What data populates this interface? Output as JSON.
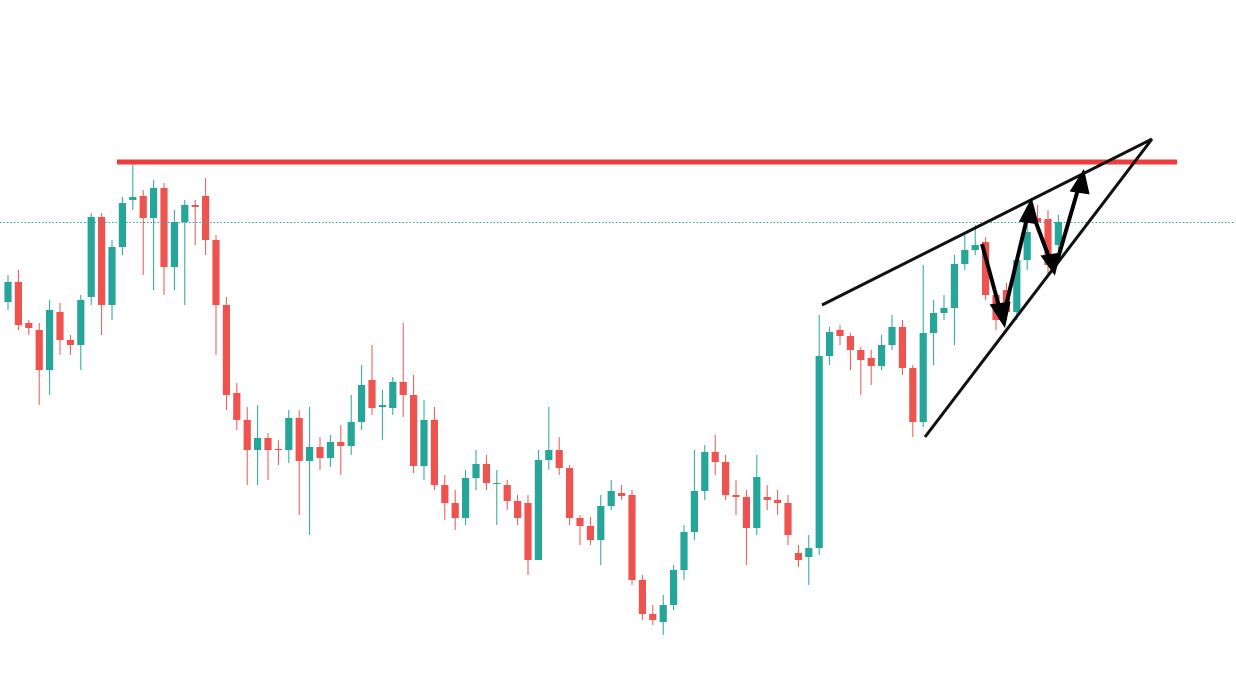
{
  "chart_data": {
    "type": "candlestick",
    "up_color": "#26a69a",
    "down_color": "#ef5350",
    "ylim": [
      0,
      695
    ],
    "open": [
      393,
      413,
      372,
      365,
      325,
      383,
      355,
      350,
      398,
      478,
      390,
      448,
      495,
      499,
      477,
      507,
      428,
      473,
      490,
      499,
      455,
      390,
      302,
      275,
      245,
      257,
      246,
      245,
      277,
      234,
      248,
      237,
      253,
      249,
      273,
      315,
      288,
      287,
      313,
      300,
      229,
      275,
      210,
      192,
      177,
      217,
      231,
      211,
      210,
      194,
      192,
      135,
      235,
      245,
      227,
      177,
      169,
      155,
      189,
      202,
      200,
      115,
      81,
      73,
      90,
      125,
      163,
      204,
      243,
      233,
      200,
      198,
      167,
      198,
      195,
      192,
      142,
      138,
      147,
      339,
      365,
      359,
      345,
      337,
      329,
      350,
      368,
      327,
      273,
      362,
      382,
      387,
      431,
      445,
      453,
      400,
      405,
      383,
      435,
      477,
      476,
      450
    ],
    "close": [
      413,
      370,
      367,
      325,
      385,
      355,
      350,
      395,
      478,
      390,
      448,
      492,
      498,
      477,
      507,
      428,
      473,
      490,
      488,
      455,
      390,
      300,
      275,
      245,
      257,
      245,
      245,
      277,
      234,
      248,
      237,
      253,
      249,
      273,
      310,
      287,
      290,
      313,
      300,
      229,
      275,
      210,
      192,
      177,
      217,
      231,
      212,
      212,
      194,
      177,
      135,
      235,
      245,
      227,
      177,
      169,
      155,
      189,
      204,
      199,
      115,
      81,
      75,
      90,
      125,
      163,
      204,
      243,
      233,
      200,
      198,
      167,
      218,
      195,
      192,
      160,
      135,
      147,
      339,
      363,
      359,
      345,
      335,
      329,
      350,
      368,
      327,
      273,
      362,
      382,
      387,
      431,
      445,
      450,
      400,
      375,
      383,
      435,
      463,
      473,
      430,
      473
    ],
    "high": [
      420,
      425,
      375,
      372,
      395,
      392,
      360,
      400,
      482,
      482,
      455,
      498,
      532,
      505,
      515,
      512,
      485,
      495,
      495,
      517,
      460,
      398,
      312,
      288,
      290,
      262,
      255,
      285,
      285,
      288,
      258,
      260,
      270,
      300,
      330,
      350,
      305,
      318,
      372,
      320,
      295,
      288,
      220,
      205,
      225,
      245,
      240,
      225,
      215,
      200,
      200,
      245,
      288,
      258,
      230,
      180,
      178,
      200,
      215,
      210,
      205,
      120,
      90,
      100,
      130,
      170,
      245,
      250,
      260,
      240,
      215,
      205,
      240,
      210,
      205,
      200,
      150,
      160,
      380,
      368,
      370,
      362,
      348,
      345,
      360,
      380,
      375,
      330,
      430,
      395,
      400,
      440,
      460,
      470,
      458,
      405,
      412,
      440,
      475,
      490,
      485,
      480
    ],
    "low": [
      385,
      365,
      360,
      290,
      300,
      340,
      340,
      325,
      390,
      360,
      375,
      440,
      485,
      420,
      405,
      400,
      405,
      390,
      450,
      440,
      340,
      285,
      265,
      210,
      210,
      215,
      230,
      232,
      180,
      160,
      225,
      228,
      220,
      240,
      265,
      280,
      255,
      280,
      278,
      222,
      215,
      205,
      175,
      165,
      170,
      205,
      205,
      170,
      185,
      170,
      120,
      135,
      225,
      220,
      170,
      150,
      150,
      130,
      185,
      195,
      110,
      75,
      70,
      60,
      85,
      115,
      155,
      195,
      220,
      195,
      180,
      130,
      160,
      185,
      180,
      150,
      128,
      110,
      140,
      330,
      350,
      325,
      300,
      310,
      325,
      345,
      320,
      258,
      268,
      330,
      375,
      350,
      425,
      440,
      395,
      365,
      375,
      375,
      425,
      465,
      420,
      440
    ]
  }
}
